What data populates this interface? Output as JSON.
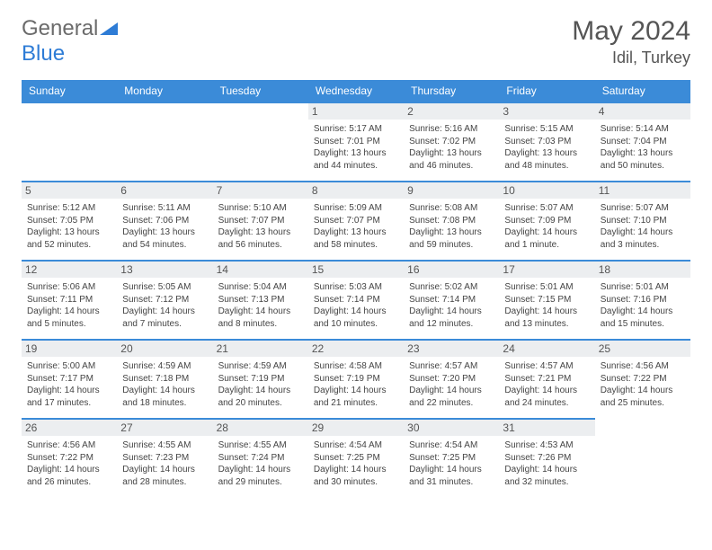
{
  "brand": {
    "part1": "General",
    "part2": "Blue"
  },
  "title": {
    "month": "May 2024",
    "location": "Idil, Turkey"
  },
  "colors": {
    "accent": "#3b8bd8",
    "daybg": "#eceef0",
    "text": "#444"
  },
  "dayNames": [
    "Sunday",
    "Monday",
    "Tuesday",
    "Wednesday",
    "Thursday",
    "Friday",
    "Saturday"
  ],
  "leadingEmpty": 3,
  "days": [
    {
      "n": "1",
      "sr": "5:17 AM",
      "ss": "7:01 PM",
      "dl": "13 hours and 44 minutes."
    },
    {
      "n": "2",
      "sr": "5:16 AM",
      "ss": "7:02 PM",
      "dl": "13 hours and 46 minutes."
    },
    {
      "n": "3",
      "sr": "5:15 AM",
      "ss": "7:03 PM",
      "dl": "13 hours and 48 minutes."
    },
    {
      "n": "4",
      "sr": "5:14 AM",
      "ss": "7:04 PM",
      "dl": "13 hours and 50 minutes."
    },
    {
      "n": "5",
      "sr": "5:12 AM",
      "ss": "7:05 PM",
      "dl": "13 hours and 52 minutes."
    },
    {
      "n": "6",
      "sr": "5:11 AM",
      "ss": "7:06 PM",
      "dl": "13 hours and 54 minutes."
    },
    {
      "n": "7",
      "sr": "5:10 AM",
      "ss": "7:07 PM",
      "dl": "13 hours and 56 minutes."
    },
    {
      "n": "8",
      "sr": "5:09 AM",
      "ss": "7:07 PM",
      "dl": "13 hours and 58 minutes."
    },
    {
      "n": "9",
      "sr": "5:08 AM",
      "ss": "7:08 PM",
      "dl": "13 hours and 59 minutes."
    },
    {
      "n": "10",
      "sr": "5:07 AM",
      "ss": "7:09 PM",
      "dl": "14 hours and 1 minute."
    },
    {
      "n": "11",
      "sr": "5:07 AM",
      "ss": "7:10 PM",
      "dl": "14 hours and 3 minutes."
    },
    {
      "n": "12",
      "sr": "5:06 AM",
      "ss": "7:11 PM",
      "dl": "14 hours and 5 minutes."
    },
    {
      "n": "13",
      "sr": "5:05 AM",
      "ss": "7:12 PM",
      "dl": "14 hours and 7 minutes."
    },
    {
      "n": "14",
      "sr": "5:04 AM",
      "ss": "7:13 PM",
      "dl": "14 hours and 8 minutes."
    },
    {
      "n": "15",
      "sr": "5:03 AM",
      "ss": "7:14 PM",
      "dl": "14 hours and 10 minutes."
    },
    {
      "n": "16",
      "sr": "5:02 AM",
      "ss": "7:14 PM",
      "dl": "14 hours and 12 minutes."
    },
    {
      "n": "17",
      "sr": "5:01 AM",
      "ss": "7:15 PM",
      "dl": "14 hours and 13 minutes."
    },
    {
      "n": "18",
      "sr": "5:01 AM",
      "ss": "7:16 PM",
      "dl": "14 hours and 15 minutes."
    },
    {
      "n": "19",
      "sr": "5:00 AM",
      "ss": "7:17 PM",
      "dl": "14 hours and 17 minutes."
    },
    {
      "n": "20",
      "sr": "4:59 AM",
      "ss": "7:18 PM",
      "dl": "14 hours and 18 minutes."
    },
    {
      "n": "21",
      "sr": "4:59 AM",
      "ss": "7:19 PM",
      "dl": "14 hours and 20 minutes."
    },
    {
      "n": "22",
      "sr": "4:58 AM",
      "ss": "7:19 PM",
      "dl": "14 hours and 21 minutes."
    },
    {
      "n": "23",
      "sr": "4:57 AM",
      "ss": "7:20 PM",
      "dl": "14 hours and 22 minutes."
    },
    {
      "n": "24",
      "sr": "4:57 AM",
      "ss": "7:21 PM",
      "dl": "14 hours and 24 minutes."
    },
    {
      "n": "25",
      "sr": "4:56 AM",
      "ss": "7:22 PM",
      "dl": "14 hours and 25 minutes."
    },
    {
      "n": "26",
      "sr": "4:56 AM",
      "ss": "7:22 PM",
      "dl": "14 hours and 26 minutes."
    },
    {
      "n": "27",
      "sr": "4:55 AM",
      "ss": "7:23 PM",
      "dl": "14 hours and 28 minutes."
    },
    {
      "n": "28",
      "sr": "4:55 AM",
      "ss": "7:24 PM",
      "dl": "14 hours and 29 minutes."
    },
    {
      "n": "29",
      "sr": "4:54 AM",
      "ss": "7:25 PM",
      "dl": "14 hours and 30 minutes."
    },
    {
      "n": "30",
      "sr": "4:54 AM",
      "ss": "7:25 PM",
      "dl": "14 hours and 31 minutes."
    },
    {
      "n": "31",
      "sr": "4:53 AM",
      "ss": "7:26 PM",
      "dl": "14 hours and 32 minutes."
    }
  ],
  "labels": {
    "sunrise": "Sunrise: ",
    "sunset": "Sunset: ",
    "daylight": "Daylight: "
  }
}
